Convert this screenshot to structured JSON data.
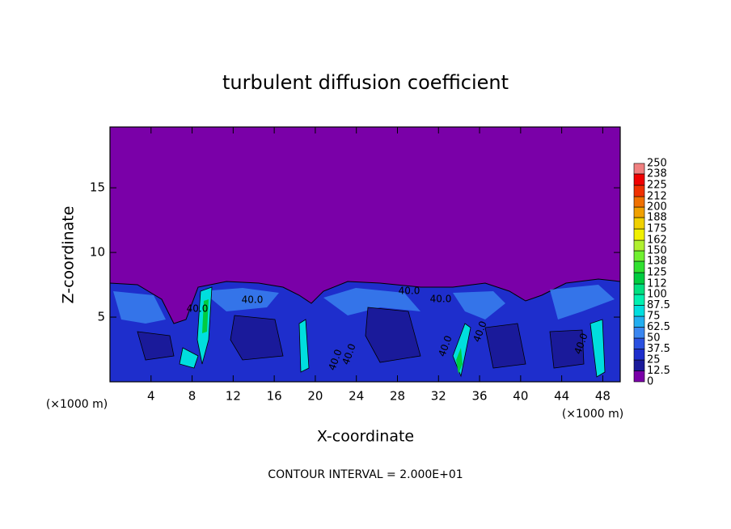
{
  "chart_data": {
    "type": "contour",
    "title": "turbulent diffusion coefficient",
    "x_label": "X-coordinate",
    "y_label": "Z-coordinate",
    "x_unit": "(×1000 m)",
    "xlim": [
      0,
      49.7
    ],
    "xticks": [
      4,
      8,
      12,
      16,
      20,
      24,
      28,
      32,
      36,
      40,
      44,
      48
    ],
    "ylim": [
      0,
      19.7
    ],
    "yticks": [
      5,
      10,
      15
    ],
    "levels": [
      0,
      12.5,
      25,
      37.5,
      50,
      62.5,
      75,
      87.5,
      100,
      112,
      125,
      138,
      150,
      162,
      175,
      188,
      200,
      212,
      225,
      238,
      250
    ],
    "level_colors": [
      "#7a00a8",
      "#1a1a9a",
      "#1e2ecc",
      "#2a50e0",
      "#3a86f0",
      "#22aef0",
      "#00dede",
      "#00f0b0",
      "#00e080",
      "#00cc40",
      "#30e030",
      "#70f030",
      "#b0f030",
      "#f0f000",
      "#f0d000",
      "#f0a000",
      "#f07000",
      "#f03000",
      "#f00000",
      "#f08080"
    ],
    "contour_labels": [
      "40.0",
      "40.0",
      "40.0",
      "40.0",
      "40.0",
      "40.0",
      "40.0",
      "40.0",
      "40.0"
    ],
    "annotation": "CONTOUR INTERVAL = 2.000E+01"
  }
}
